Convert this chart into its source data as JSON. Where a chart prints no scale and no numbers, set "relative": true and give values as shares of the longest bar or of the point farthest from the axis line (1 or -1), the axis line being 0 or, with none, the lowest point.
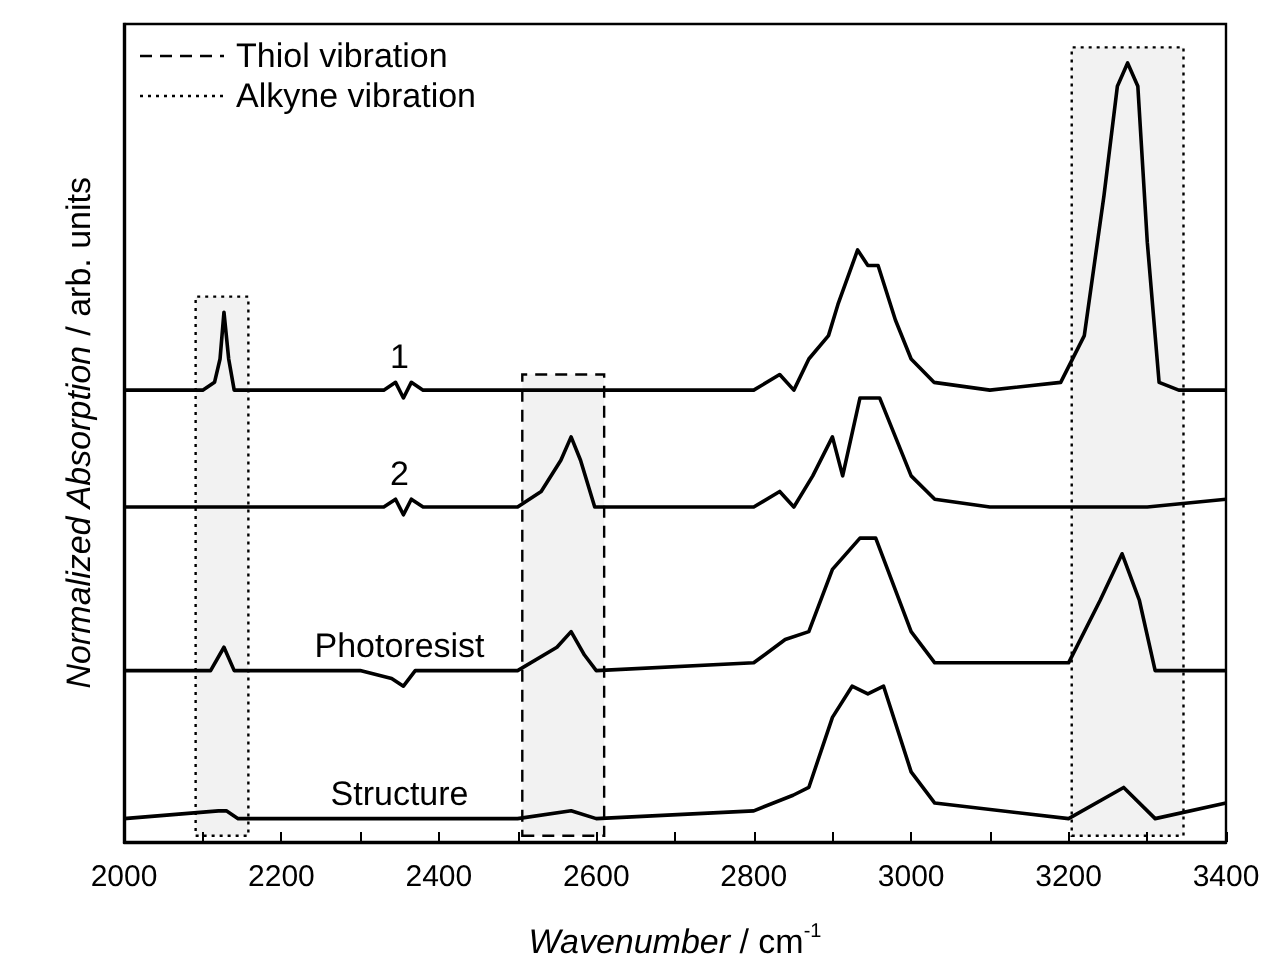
{
  "chart_data": {
    "type": "line",
    "relative": true,
    "xlabel": "Wavenumber / cm$^{-1}$",
    "ylabel": "Normalized Absorption / arb. units",
    "xlim": [
      2000,
      3400
    ],
    "xticks": [
      2000,
      {
        "value": 2100,
        "label": null
      },
      2200,
      {
        "value": 2300,
        "label": null
      },
      2400,
      {
        "value": 2500,
        "label": null
      },
      2600,
      {
        "value": 2700,
        "label": null
      },
      2800,
      {
        "value": 2900,
        "label": null
      },
      3000,
      {
        "value": 3100,
        "label": null
      },
      3200,
      {
        "value": 3300,
        "label": null
      },
      3400
    ],
    "series": [
      {
        "name": "1",
        "color": "#000000",
        "x": [
          2000,
          2100,
          2115,
          2122,
          2127,
          2133,
          2140,
          2200,
          2330,
          2345,
          2355,
          2365,
          2380,
          2600,
          2800,
          2833,
          2851,
          2870,
          2895,
          2907,
          2932,
          2945,
          2958,
          2980,
          3000,
          3029,
          3100,
          3190,
          3220,
          3245,
          3262,
          3275,
          3288,
          3300,
          3315,
          3340,
          3400
        ],
        "values": [
          0.58,
          0.58,
          0.59,
          0.62,
          0.68,
          0.62,
          0.58,
          0.58,
          0.58,
          0.59,
          0.57,
          0.59,
          0.58,
          0.58,
          0.58,
          0.6,
          0.58,
          0.62,
          0.65,
          0.69,
          0.76,
          0.74,
          0.74,
          0.67,
          0.62,
          0.59,
          0.58,
          0.59,
          0.65,
          0.83,
          0.97,
          1,
          0.97,
          0.77,
          0.59,
          0.58,
          0.58
        ]
      },
      {
        "name": "2",
        "color": "#000000",
        "x": [
          2000,
          2200,
          2330,
          2345,
          2355,
          2365,
          2380,
          2500,
          2530,
          2555,
          2568,
          2580,
          2598,
          2800,
          2833,
          2851,
          2875,
          2900,
          2913,
          2935,
          2960,
          3000,
          3030,
          3100,
          3300,
          3400
        ],
        "values": [
          0.43,
          0.43,
          0.43,
          0.44,
          0.42,
          0.44,
          0.43,
          0.43,
          0.45,
          0.49,
          0.52,
          0.49,
          0.43,
          0.43,
          0.45,
          0.43,
          0.47,
          0.52,
          0.47,
          0.57,
          0.57,
          0.47,
          0.44,
          0.43,
          0.43,
          0.44
        ]
      },
      {
        "name": "Photoresist",
        "color": "#000000",
        "x": [
          2000,
          2110,
          2127,
          2140,
          2300,
          2340,
          2355,
          2370,
          2500,
          2550,
          2568,
          2585,
          2600,
          2800,
          2840,
          2870,
          2900,
          2935,
          2955,
          3000,
          3030,
          3200,
          3240,
          3268,
          3290,
          3310,
          3400
        ],
        "values": [
          0.22,
          0.22,
          0.25,
          0.22,
          0.22,
          0.21,
          0.2,
          0.22,
          0.22,
          0.25,
          0.27,
          0.24,
          0.22,
          0.23,
          0.26,
          0.27,
          0.35,
          0.39,
          0.39,
          0.27,
          0.23,
          0.23,
          0.31,
          0.37,
          0.31,
          0.22,
          0.22
        ]
      },
      {
        "name": "Structure",
        "color": "#000000",
        "x": [
          2000,
          2120,
          2130,
          2145,
          2250,
          2500,
          2568,
          2600,
          2800,
          2850,
          2870,
          2900,
          2925,
          2945,
          2965,
          3000,
          3030,
          3200,
          3270,
          3310,
          3400
        ],
        "values": [
          0.03,
          0.04,
          0.04,
          0.03,
          0.03,
          0.03,
          0.04,
          0.03,
          0.04,
          0.06,
          0.07,
          0.16,
          0.2,
          0.19,
          0.2,
          0.09,
          0.05,
          0.03,
          0.07,
          0.03,
          0.05
        ]
      }
    ],
    "bands": [
      {
        "axis": "x",
        "from": 2506,
        "to": 2610,
        "label": "Thiol vibration"
      },
      {
        "axis": "x",
        "from": 2091,
        "to": 2158,
        "label": "Alkyne vibration"
      },
      {
        "axis": "x",
        "from": 3204,
        "to": 3346
      }
    ],
    "legend": "top left"
  }
}
